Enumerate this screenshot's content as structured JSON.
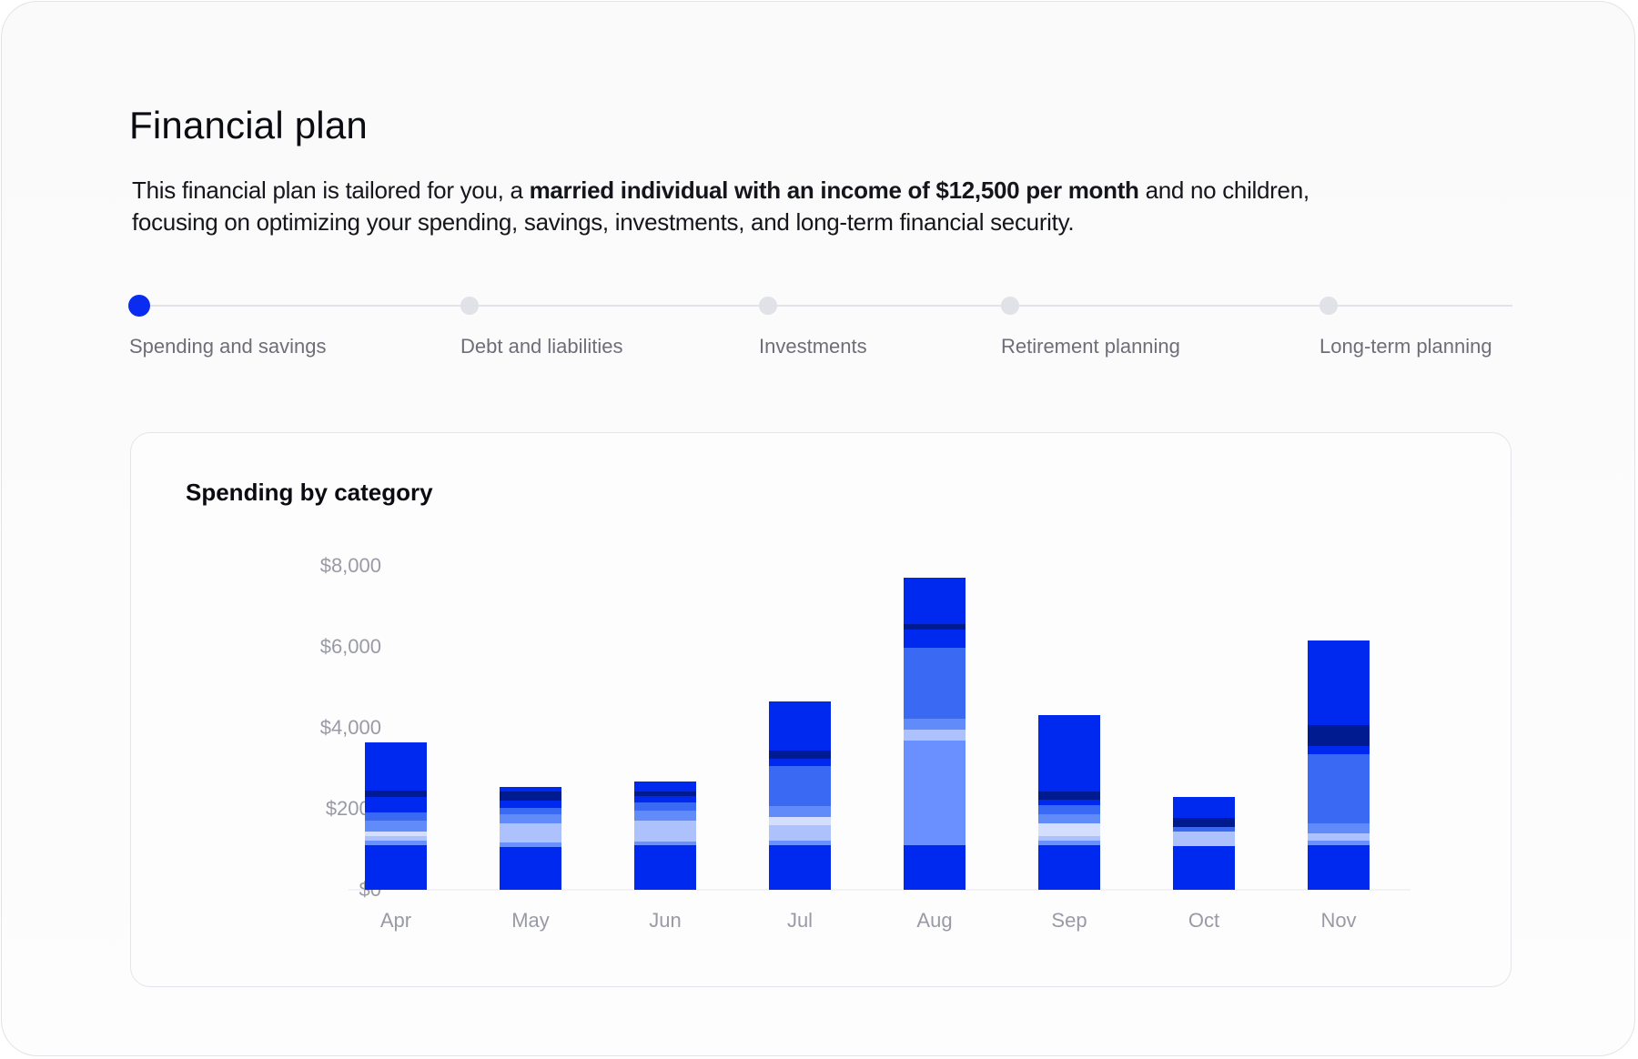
{
  "page": {
    "title": "Financial plan",
    "description_pre": "This financial plan is tailored for you, a ",
    "description_bold": "married individual with an income of $12,500 per month",
    "description_post": " and no children, focusing on optimizing your spending, savings, investments, and long-term financial security."
  },
  "stepper": {
    "steps": [
      {
        "label": "Spending and savings",
        "active": true
      },
      {
        "label": "Debt and liabilities",
        "active": false
      },
      {
        "label": "Investments",
        "active": false
      },
      {
        "label": "Retirement planning",
        "active": false
      },
      {
        "label": "Long-term planning",
        "active": false
      }
    ]
  },
  "chart_data": {
    "type": "bar",
    "stacked": true,
    "title": "Spending by category",
    "xlabel": "",
    "ylabel": "",
    "ylim": [
      0,
      8000
    ],
    "y_ticks": [
      "$0",
      "$2000",
      "$4,000",
      "$6,000",
      "$8,000"
    ],
    "y_tick_values": [
      0,
      2000,
      4000,
      6000,
      8000
    ],
    "categories": [
      "Apr",
      "May",
      "Jun",
      "Jul",
      "Aug",
      "Sep",
      "Oct",
      "Nov"
    ],
    "segment_colors": [
      "#0029f0",
      "#6a8fff",
      "#adc2fc",
      "#d4dfff",
      "#628bfa",
      "#3a69f4",
      "#0029f0",
      "#001a8f",
      "#0029f0"
    ],
    "stacks": [
      [
        1100,
        110,
        110,
        110,
        270,
        200,
        400,
        150,
        1200
      ],
      [
        1065,
        105,
        480,
        0,
        225,
        140,
        190,
        225,
        120
      ],
      [
        1090,
        110,
        510,
        0,
        255,
        190,
        170,
        105,
        240
      ],
      [
        1095,
        120,
        390,
        195,
        270,
        975,
        200,
        200,
        1215
      ],
      [
        1095,
        2590,
        260,
        0,
        270,
        1770,
        450,
        120,
        1160
      ],
      [
        1100,
        110,
        110,
        315,
        225,
        220,
        150,
        195,
        1880
      ],
      [
        1080,
        0,
        360,
        0,
        0,
        110,
        0,
        225,
        525
      ],
      [
        1100,
        110,
        180,
        0,
        250,
        1710,
        200,
        520,
        2085
      ]
    ]
  }
}
